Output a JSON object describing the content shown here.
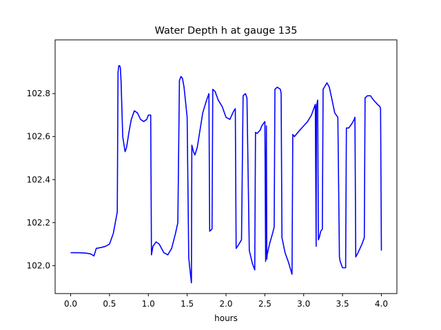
{
  "chart_data": {
    "type": "line",
    "title": "Water Depth h at gauge 135",
    "xlabel": "hours",
    "ylabel": "",
    "xlim": [
      -0.2,
      4.2
    ],
    "ylim": [
      101.87,
      103.05
    ],
    "xticks": [
      0.0,
      0.5,
      1.0,
      1.5,
      2.0,
      2.5,
      3.0,
      3.5,
      4.0
    ],
    "xtick_labels": [
      "0.0",
      "0.5",
      "1.0",
      "1.5",
      "2.0",
      "2.5",
      "3.0",
      "3.5",
      "4.0"
    ],
    "yticks": [
      102.0,
      102.2,
      102.4,
      102.6,
      102.8
    ],
    "ytick_labels": [
      "102.0",
      "102.2",
      "102.4",
      "102.6",
      "102.8"
    ],
    "grid": false,
    "series": [
      {
        "color": "#0000ff",
        "x": [
          0.0,
          0.1,
          0.2,
          0.25,
          0.28,
          0.3,
          0.33,
          0.4,
          0.45,
          0.5,
          0.55,
          0.6,
          0.61,
          0.62,
          0.63,
          0.64,
          0.65,
          0.67,
          0.7,
          0.72,
          0.75,
          0.78,
          0.82,
          0.86,
          0.9,
          0.94,
          0.98,
          1.0,
          1.03,
          1.04,
          1.06,
          1.1,
          1.14,
          1.2,
          1.25,
          1.3,
          1.35,
          1.38,
          1.4,
          1.42,
          1.44,
          1.46,
          1.5,
          1.52,
          1.53,
          1.555,
          1.56,
          1.58,
          1.6,
          1.63,
          1.7,
          1.75,
          1.78,
          1.79,
          1.82,
          1.83,
          1.86,
          1.9,
          1.95,
          2.0,
          2.05,
          2.1,
          2.12,
          2.13,
          2.15,
          2.2,
          2.22,
          2.25,
          2.27,
          2.3,
          2.34,
          2.37,
          2.38,
          2.4,
          2.44,
          2.46,
          2.5,
          2.51,
          2.52,
          2.525,
          2.53,
          2.56,
          2.6,
          2.62,
          2.63,
          2.66,
          2.7,
          2.71,
          2.72,
          2.76,
          2.8,
          2.85,
          2.86,
          2.88,
          2.95,
          3.0,
          3.05,
          3.1,
          3.15,
          3.16,
          3.165,
          3.18,
          3.19,
          3.2,
          3.22,
          3.24,
          3.25,
          3.3,
          3.33,
          3.36,
          3.4,
          3.44,
          3.46,
          3.47,
          3.5,
          3.54,
          3.55,
          3.58,
          3.62,
          3.65,
          3.66,
          3.67,
          3.7,
          3.75,
          3.78,
          3.79,
          3.82,
          3.86,
          3.9,
          3.95,
          3.98,
          3.99,
          4.0
        ],
        "y": [
          102.06,
          102.06,
          102.058,
          102.055,
          102.05,
          102.045,
          102.08,
          102.085,
          102.09,
          102.1,
          102.15,
          102.25,
          102.9,
          102.93,
          102.93,
          102.92,
          102.85,
          102.6,
          102.53,
          102.55,
          102.62,
          102.68,
          102.72,
          102.71,
          102.68,
          102.67,
          102.68,
          102.7,
          102.7,
          102.05,
          102.09,
          102.11,
          102.1,
          102.06,
          102.05,
          102.08,
          102.15,
          102.2,
          102.86,
          102.88,
          102.87,
          102.83,
          102.69,
          102.04,
          102.0,
          101.92,
          102.56,
          102.53,
          102.515,
          102.55,
          102.71,
          102.77,
          102.8,
          102.16,
          102.17,
          102.82,
          102.81,
          102.77,
          102.74,
          102.69,
          102.68,
          102.72,
          102.73,
          102.08,
          102.09,
          102.12,
          102.79,
          102.8,
          102.78,
          102.07,
          102.01,
          101.98,
          102.62,
          102.615,
          102.63,
          102.65,
          102.67,
          102.02,
          102.65,
          102.03,
          102.05,
          102.1,
          102.15,
          102.18,
          102.82,
          102.83,
          102.82,
          102.8,
          102.13,
          102.06,
          102.02,
          101.96,
          102.61,
          102.6,
          102.63,
          102.65,
          102.67,
          102.7,
          102.75,
          102.09,
          102.74,
          102.77,
          102.12,
          102.13,
          102.16,
          102.17,
          102.82,
          102.85,
          102.83,
          102.78,
          102.71,
          102.69,
          102.04,
          102.02,
          101.99,
          101.99,
          102.64,
          102.64,
          102.66,
          102.68,
          102.69,
          102.04,
          102.06,
          102.1,
          102.13,
          102.78,
          102.79,
          102.79,
          102.77,
          102.75,
          102.74,
          102.73,
          102.07
        ]
      }
    ]
  }
}
